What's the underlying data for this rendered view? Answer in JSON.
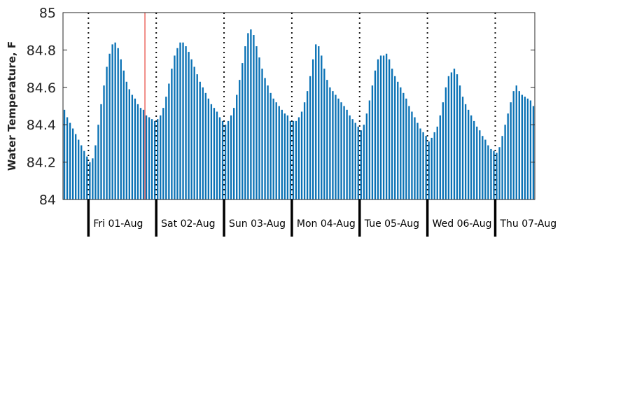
{
  "chart_data": {
    "type": "bar",
    "title": "",
    "xlabel": "",
    "ylabel": "Water Temperature, F",
    "ylim": [
      84,
      85
    ],
    "yticks": [
      84,
      84.2,
      84.4,
      84.6,
      84.8,
      85
    ],
    "ytick_labels": [
      "84",
      "84.2",
      "84.4",
      "84.6",
      "84.8",
      "85"
    ],
    "grid": false,
    "legend": "none",
    "bar_color": "#0b72b5",
    "now_line_color": "#e8433a",
    "hours_per_bar": 1,
    "first_bar_hour_offset": -9,
    "now_marker_hour": 20,
    "day_labels": [
      "Fri 01-Aug",
      "Sat 02-Aug",
      "Sun 03-Aug",
      "Mon 04-Aug",
      "Tue 05-Aug",
      "Wed 06-Aug",
      "Thu 07-Aug"
    ],
    "values": [
      84.48,
      84.44,
      84.41,
      84.38,
      84.35,
      84.32,
      84.29,
      84.26,
      84.23,
      84.2,
      84.22,
      84.29,
      84.4,
      84.51,
      84.61,
      84.71,
      84.78,
      84.83,
      84.84,
      84.81,
      84.75,
      84.69,
      84.63,
      84.59,
      84.56,
      84.54,
      84.51,
      84.49,
      84.48,
      84.45,
      84.44,
      84.43,
      84.42,
      84.43,
      84.45,
      84.49,
      84.55,
      84.62,
      84.7,
      84.77,
      84.81,
      84.84,
      84.84,
      84.82,
      84.79,
      84.75,
      84.71,
      84.67,
      84.63,
      84.6,
      84.57,
      84.54,
      84.51,
      84.49,
      84.47,
      84.44,
      84.42,
      84.4,
      84.42,
      84.45,
      84.49,
      84.56,
      84.64,
      84.73,
      84.82,
      84.89,
      84.91,
      84.88,
      84.82,
      84.76,
      84.7,
      84.65,
      84.61,
      84.57,
      84.54,
      84.52,
      84.5,
      84.48,
      84.46,
      84.45,
      84.42,
      84.42,
      84.42,
      84.44,
      84.47,
      84.52,
      84.58,
      84.66,
      84.75,
      84.83,
      84.82,
      84.77,
      84.7,
      84.64,
      84.6,
      84.58,
      84.56,
      84.54,
      84.52,
      84.5,
      84.48,
      84.45,
      84.43,
      84.41,
      84.39,
      84.37,
      84.4,
      84.46,
      84.53,
      84.61,
      84.69,
      84.75,
      84.77,
      84.77,
      84.78,
      84.75,
      84.7,
      84.66,
      84.63,
      84.6,
      84.57,
      84.54,
      84.5,
      84.47,
      84.44,
      84.41,
      84.38,
      84.36,
      84.34,
      84.31,
      84.33,
      84.36,
      84.39,
      84.45,
      84.52,
      84.6,
      84.66,
      84.68,
      84.7,
      84.67,
      84.61,
      84.55,
      84.51,
      84.48,
      84.45,
      84.42,
      84.39,
      84.37,
      84.34,
      84.32,
      84.29,
      84.27,
      84.26,
      84.25,
      84.28,
      84.34,
      84.4,
      84.46,
      84.52,
      84.58,
      84.61,
      84.58,
      84.56,
      84.55,
      84.54,
      84.53,
      84.5
    ]
  }
}
